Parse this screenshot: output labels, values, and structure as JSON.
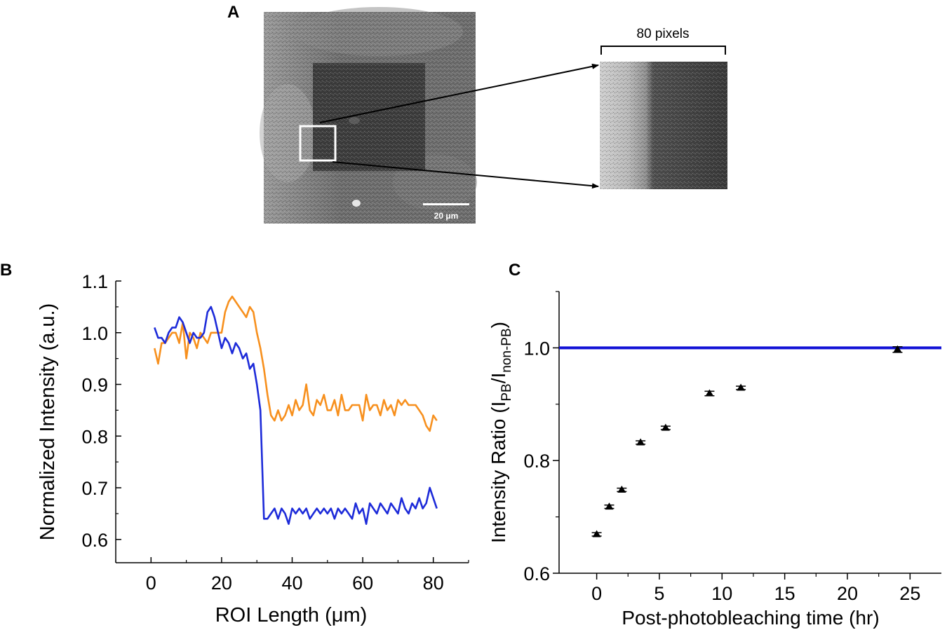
{
  "colors": {
    "orange": "#f7901e",
    "blue": "#1d2bd9",
    "bluelinec": "#1111d6",
    "axis": "#000000"
  },
  "panelA": {
    "letter": "A",
    "scale_label": "20 μm",
    "zoom_label": "80 pixels"
  },
  "chart_data": [
    {
      "id": "B",
      "type": "line",
      "letter": "B",
      "title": "",
      "xlabel": "ROI Length (μm)",
      "ylabel": "Normalized Intensity (a.u.)",
      "xlim": [
        -10,
        90
      ],
      "ylim": [
        0.555,
        1.1
      ],
      "xticks": [
        0,
        20,
        40,
        60,
        80
      ],
      "yticks": [
        0.6,
        0.7,
        0.8,
        0.9,
        1.0,
        1.1
      ],
      "ytick_labels": [
        "0.6",
        "0.7",
        "0.8",
        "0.9",
        "1.0",
        "1.1"
      ],
      "grid": false,
      "series": [
        {
          "name": "orange",
          "color": "#f7901e",
          "x": [
            1,
            2,
            3,
            4,
            5,
            6,
            7,
            8,
            9,
            10,
            11,
            12,
            13,
            14,
            15,
            16,
            17,
            18,
            19,
            20,
            21,
            22,
            23,
            24,
            25,
            26,
            27,
            28,
            29,
            30,
            31,
            32,
            33,
            34,
            35,
            36,
            37,
            38,
            39,
            40,
            41,
            42,
            43,
            44,
            45,
            46,
            47,
            48,
            49,
            50,
            51,
            52,
            53,
            54,
            55,
            56,
            57,
            58,
            59,
            60,
            61,
            62,
            63,
            64,
            65,
            66,
            67,
            68,
            69,
            70,
            71,
            72,
            73,
            74,
            75,
            76,
            77,
            78,
            79,
            80,
            81
          ],
          "y": [
            0.97,
            0.94,
            0.98,
            0.98,
            0.99,
            1.0,
            1.0,
            0.98,
            1.02,
            0.95,
            1.0,
            0.99,
            0.97,
            1.0,
            0.99,
            0.98,
            1.0,
            1.0,
            1.0,
            1.0,
            1.04,
            1.06,
            1.07,
            1.06,
            1.05,
            1.04,
            1.03,
            1.05,
            1.04,
            1.0,
            0.97,
            0.93,
            0.88,
            0.84,
            0.83,
            0.85,
            0.83,
            0.84,
            0.86,
            0.84,
            0.87,
            0.85,
            0.86,
            0.9,
            0.85,
            0.84,
            0.87,
            0.86,
            0.88,
            0.85,
            0.85,
            0.87,
            0.84,
            0.88,
            0.85,
            0.85,
            0.86,
            0.86,
            0.86,
            0.83,
            0.88,
            0.85,
            0.86,
            0.86,
            0.84,
            0.87,
            0.85,
            0.86,
            0.84,
            0.87,
            0.86,
            0.87,
            0.86,
            0.86,
            0.86,
            0.85,
            0.84,
            0.82,
            0.81,
            0.84,
            0.83
          ]
        },
        {
          "name": "blue",
          "color": "#1d2bd9",
          "x": [
            1,
            2,
            3,
            4,
            5,
            6,
            7,
            8,
            9,
            10,
            11,
            12,
            13,
            14,
            15,
            16,
            17,
            18,
            19,
            20,
            21,
            22,
            23,
            24,
            25,
            26,
            27,
            28,
            29,
            30,
            31,
            32,
            33,
            34,
            35,
            36,
            37,
            38,
            39,
            40,
            41,
            42,
            43,
            44,
            45,
            46,
            47,
            48,
            49,
            50,
            51,
            52,
            53,
            54,
            55,
            56,
            57,
            58,
            59,
            60,
            61,
            62,
            63,
            64,
            65,
            66,
            67,
            68,
            69,
            70,
            71,
            72,
            73,
            74,
            75,
            76,
            77,
            78,
            79,
            80,
            81
          ],
          "y": [
            1.01,
            0.99,
            0.99,
            0.98,
            1.0,
            1.01,
            1.01,
            1.03,
            1.02,
            1.0,
            0.98,
            1.0,
            0.99,
            0.99,
            1.0,
            1.04,
            1.05,
            1.03,
            1.0,
            0.97,
            0.99,
            0.98,
            0.96,
            0.98,
            0.97,
            0.95,
            0.96,
            0.93,
            0.94,
            0.9,
            0.85,
            0.64,
            0.64,
            0.65,
            0.66,
            0.64,
            0.66,
            0.65,
            0.63,
            0.66,
            0.65,
            0.66,
            0.65,
            0.66,
            0.64,
            0.65,
            0.66,
            0.65,
            0.66,
            0.65,
            0.66,
            0.64,
            0.66,
            0.65,
            0.66,
            0.65,
            0.64,
            0.67,
            0.65,
            0.66,
            0.63,
            0.67,
            0.66,
            0.65,
            0.67,
            0.66,
            0.65,
            0.67,
            0.66,
            0.65,
            0.68,
            0.66,
            0.65,
            0.67,
            0.66,
            0.68,
            0.66,
            0.67,
            0.7,
            0.68,
            0.66
          ]
        }
      ]
    },
    {
      "id": "C",
      "type": "scatter",
      "letter": "C",
      "title": "",
      "xlabel": "Post-photobleaching time (hr)",
      "ylabel_main": "Intensity Ratio (I",
      "ylabel_sub1": "PB",
      "ylabel_mid": "/I",
      "ylabel_sub2": "non-PB",
      "ylabel_end": ")",
      "xlim": [
        -3,
        27.5
      ],
      "ylim": [
        0.6,
        1.1
      ],
      "xticks": [
        0,
        5,
        10,
        15,
        20,
        25
      ],
      "yticks": [
        0.6,
        0.8,
        1.0
      ],
      "ytick_labels": [
        "0.6",
        "0.8",
        "1.0"
      ],
      "minor_yticks": [
        0.7,
        0.9,
        1.1
      ],
      "grid": false,
      "reference_line": {
        "y": 1.0,
        "color": "#1111d6"
      },
      "series": [
        {
          "name": "intensity ratio",
          "color": "#000000",
          "x": [
            0,
            1,
            2,
            3.5,
            5.5,
            9,
            11.5,
            24
          ],
          "y": [
            0.669,
            0.718,
            0.748,
            0.832,
            0.858,
            0.919,
            0.929,
            0.997
          ],
          "err": [
            0.003,
            0.003,
            0.003,
            0.003,
            0.003,
            0.004,
            0.003,
            0.005
          ]
        }
      ]
    }
  ]
}
